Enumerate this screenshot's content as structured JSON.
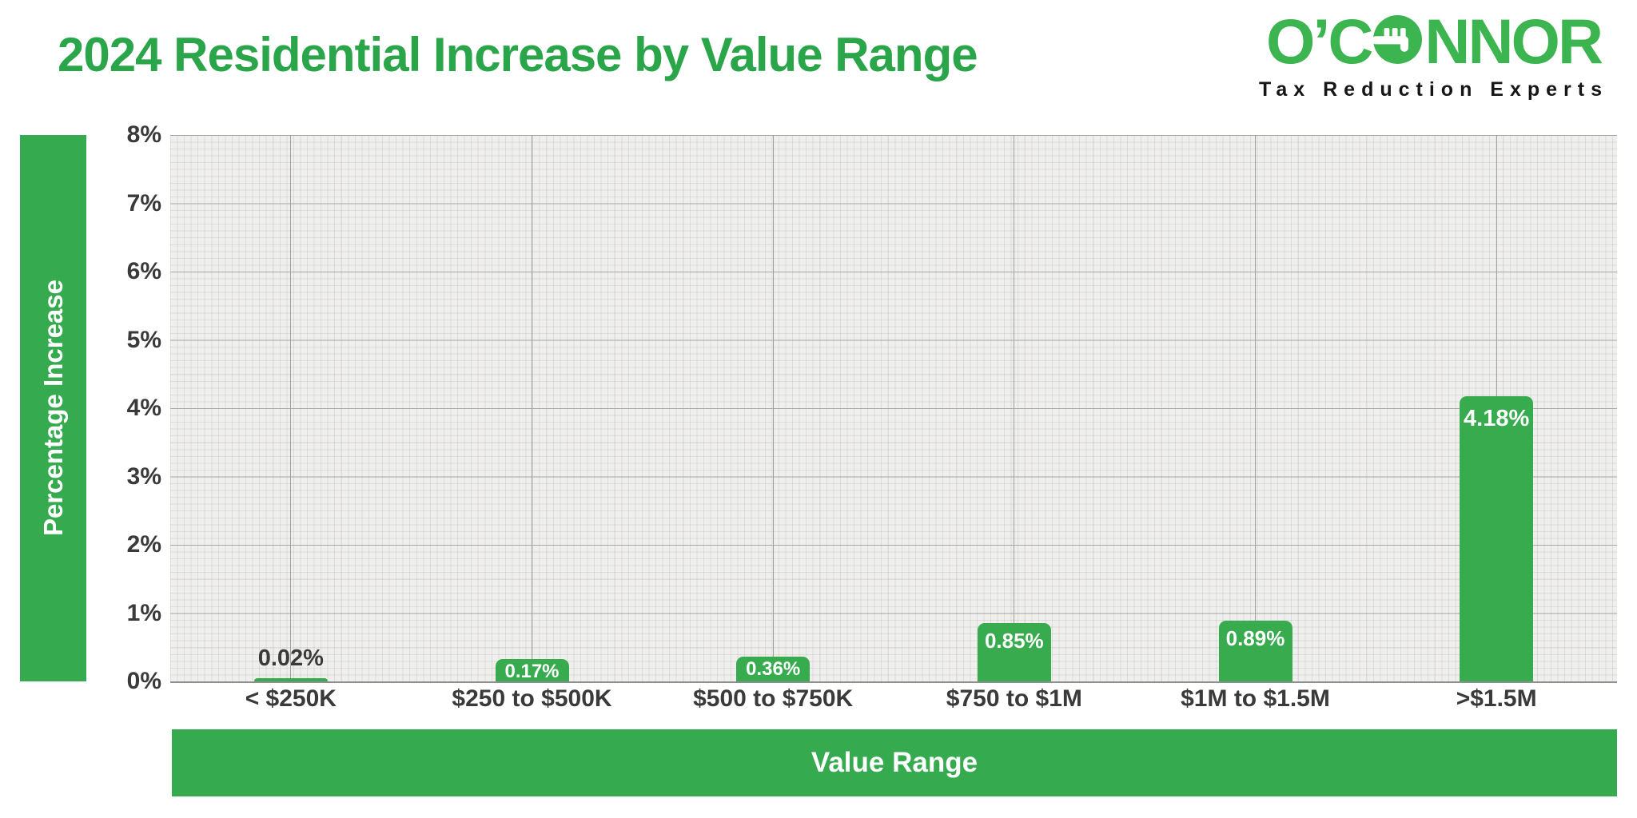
{
  "header": {
    "title": "2024 Residential Increase by Value Range"
  },
  "logo": {
    "wordmark_left": "O’C",
    "wordmark_right": "NNOR",
    "tagline": "Tax Reduction Experts",
    "key_icon": "key-in-o-icon"
  },
  "colors": {
    "title_green": "#2ba54a",
    "bar_green": "#38ab4f",
    "band_green": "#35aa4e",
    "logo_green": "#3cb44f",
    "axis_text": "#3a3a3a",
    "plot_background": "#efefee",
    "value_label_inside": "#ffffff"
  },
  "chart_data": {
    "type": "bar",
    "title": "2024 Residential Increase by Value Range",
    "categories": [
      "< $250K",
      "$250 to $500K",
      "$500 to $750K",
      "$750 to $1M",
      "$1M to $1.5M",
      ">$1.5M"
    ],
    "values": [
      0.02,
      0.17,
      0.36,
      0.85,
      0.89,
      4.18
    ],
    "value_labels": [
      "0.02%",
      "0.17%",
      "0.36%",
      "0.85%",
      "0.89%",
      "4.18%"
    ],
    "xlabel": "Value Range",
    "ylabel": "Percentage Increase",
    "ylim": [
      0,
      8
    ],
    "ytick_step": 1,
    "ytick_labels": [
      "0%",
      "1%",
      "2%",
      "3%",
      "4%",
      "5%",
      "6%",
      "7%",
      "8%"
    ],
    "grid": "fine graph-paper minor grid, major horizontal line each 1%, vertical line at each category center",
    "legend": "none",
    "bar_label_style": "white inside bar top; dark above bar when bar too short"
  }
}
